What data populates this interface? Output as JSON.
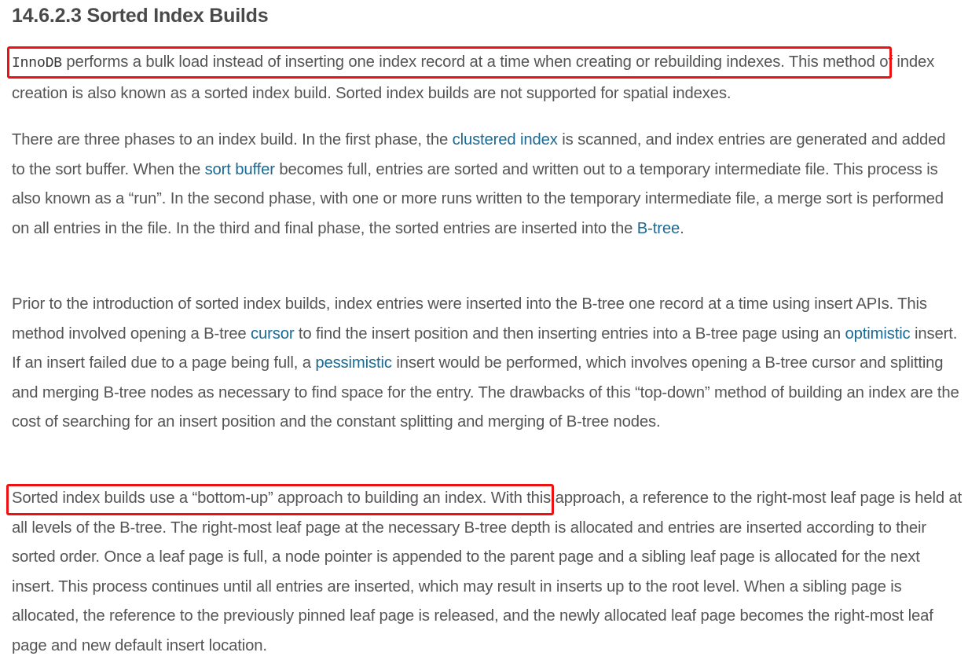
{
  "section": {
    "title": "14.6.2.3 Sorted Index Builds"
  },
  "p1": {
    "code": "InnoDB",
    "t1": " performs a bulk load instead of inserting one index record at a time when creating or rebuilding indexes.",
    "t2": " This method of index creation is also known as a sorted index build. Sorted index builds are not supported for spatial indexes."
  },
  "p2": {
    "t1": "There are three phases to an index build. In the first phase, the ",
    "link1": "clustered index",
    "t2": " is scanned, and index entries are generated and added to the sort buffer. When the ",
    "link2": "sort buffer",
    "t3": " becomes full, entries are sorted and written out to a temporary intermediate file. This process is also known as a “run”. In the second phase, with one or more runs written to the temporary intermediate file, a merge sort is performed on all entries in the file. In the third and final phase, the sorted entries are inserted into the ",
    "link3": "B-tree",
    "t4": "."
  },
  "p3": {
    "t1": "Prior to the introduction of sorted index builds, index entries were inserted into the B-tree one record at a time using insert APIs. This method involved opening a B-tree ",
    "link1": "cursor",
    "t2": " to find the insert position and then inserting entries into a B-tree page using an ",
    "link2": "optimistic",
    "t3": " insert. If an insert failed due to a page being full, a ",
    "link3": "pessimistic",
    "t4": " insert would be performed, which involves opening a B-tree cursor and splitting and merging B-tree nodes as necessary to find space for the entry. The drawbacks of this “top-down” method of building an index are the cost of searching for an insert position and the constant splitting and merging of B-tree nodes."
  },
  "p4": {
    "t1": "Sorted index builds use a “bottom-up” approach to building an index.",
    "t2": " With this approach, a reference to the right-most leaf page is held at all levels of the B-tree. The right-most leaf page at the necessary B-tree depth is allocated and entries are inserted according to their sorted order. Once a leaf page is full, a node pointer is appended to the parent page and a sibling leaf page is allocated for the next insert. This process continues until all entries are inserted, which may result in inserts up to the root level. When a sibling page is allocated, the reference to the previously pinned leaf page is released, and the newly allocated leaf page becomes the right-most leaf page and new default insert location."
  },
  "highlight": {
    "color": "#ee1111"
  }
}
